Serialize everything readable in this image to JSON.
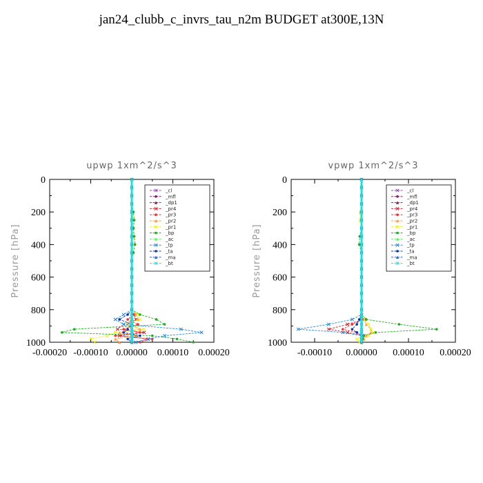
{
  "page": {
    "title": "jan24_clubb_c_invrs_tau_n2m  BUDGET at300E,13N"
  },
  "legend_items": [
    {
      "label": "_cl",
      "color": "#8e44ad"
    },
    {
      "label": "_mfl",
      "color": "#7b1f6e"
    },
    {
      "label": "_dp1",
      "color": "#8b1a4a"
    },
    {
      "label": "_pr4",
      "color": "#cc2233"
    },
    {
      "label": "_pr3",
      "color": "#ee3333"
    },
    {
      "label": "_pr2",
      "color": "#ff9933"
    },
    {
      "label": "_pr1",
      "color": "#eeee22"
    },
    {
      "label": "_bp",
      "color": "#22aa22"
    },
    {
      "label": "_ac",
      "color": "#66ee66"
    },
    {
      "label": "_tp",
      "color": "#2288dd"
    },
    {
      "label": "_ta",
      "color": "#1133aa"
    },
    {
      "label": "_ma",
      "color": "#3366cc"
    },
    {
      "label": "_bt",
      "color": "#22dddd"
    }
  ],
  "chart_data": [
    {
      "type": "line",
      "title": "upwp   1xm^2/s^3",
      "xlabel": "",
      "ylabel": "Pressure [hPa]",
      "xlim": [
        -0.0002,
        0.0002
      ],
      "ylim": [
        1000,
        0
      ],
      "xticks": [
        -0.0002,
        -0.0001,
        0.0,
        0.0001,
        0.0002
      ],
      "xtick_labels": [
        "-0.00020",
        "-0.00010",
        "0.00000",
        "0.00010",
        "0.00020"
      ],
      "yticks": [
        0,
        200,
        400,
        600,
        800,
        1000
      ],
      "ytick_labels": [
        "0",
        "200",
        "400",
        "600",
        "800",
        "1000"
      ],
      "legend_position": "top-right",
      "pressure": [
        0,
        50,
        100,
        150,
        200,
        250,
        300,
        350,
        400,
        450,
        500,
        550,
        600,
        650,
        700,
        750,
        800,
        830,
        860,
        890,
        920,
        940,
        960,
        980,
        1000
      ],
      "series": [
        {
          "name": "_cl",
          "color": "#8e44ad",
          "values": [
            0,
            0,
            0,
            0,
            0,
            0,
            0,
            0,
            0,
            0,
            0,
            0,
            0,
            0,
            0,
            0,
            0,
            0,
            0,
            0,
            0,
            0,
            0,
            0,
            0
          ]
        },
        {
          "name": "_mfl",
          "color": "#7b1f6e",
          "values": [
            0,
            0,
            0,
            0,
            0,
            0,
            0,
            0,
            0,
            0,
            0,
            0,
            0,
            0,
            0,
            0,
            0,
            0,
            0,
            0,
            0,
            0,
            0,
            0,
            0
          ]
        },
        {
          "name": "_dp1",
          "color": "#8b1a4a",
          "values": [
            0,
            0,
            0,
            0,
            0,
            0,
            0,
            0,
            0,
            0,
            0,
            0,
            0,
            0,
            0,
            0,
            0,
            0,
            0,
            0,
            0,
            0,
            0,
            0,
            0
          ]
        },
        {
          "name": "_pr4",
          "color": "#cc2233",
          "values": [
            0,
            0,
            0,
            0,
            0,
            0,
            0,
            0,
            0,
            0,
            0,
            0,
            0,
            0,
            0,
            0,
            0,
            5e-06,
            1e-05,
            -2e-05,
            -3.5e-05,
            3e-05,
            -3e-05,
            4e-05,
            1e-05
          ]
        },
        {
          "name": "_pr3",
          "color": "#ee3333",
          "values": [
            0,
            0,
            0,
            0,
            0,
            0,
            0,
            0,
            0,
            0,
            0,
            0,
            0,
            0,
            0,
            0,
            0,
            5e-06,
            -1e-05,
            1.5e-05,
            -2e-05,
            2e-05,
            -4e-05,
            5e-05,
            2e-05
          ]
        },
        {
          "name": "_pr2",
          "color": "#ff9933",
          "values": [
            0,
            0,
            0,
            0,
            0,
            0,
            0,
            0,
            0,
            0,
            0,
            0,
            0,
            0,
            0,
            0,
            0,
            1e-05,
            1.5e-05,
            -1e-05,
            2e-05,
            -3e-05,
            1e-05,
            -4e-05,
            -3e-05
          ]
        },
        {
          "name": "_pr1",
          "color": "#eeee22",
          "values": [
            0,
            0,
            0,
            0,
            2e-06,
            3e-06,
            5e-06,
            3e-06,
            4e-06,
            2e-06,
            0,
            0,
            0,
            0,
            0,
            0,
            0,
            1.5e-05,
            2e-05,
            -2e-05,
            3e-05,
            -4e-05,
            -6e-05,
            -0.0001,
            -9e-05
          ]
        },
        {
          "name": "_bp",
          "color": "#22aa22",
          "values": [
            0,
            0,
            0,
            0,
            4e-06,
            6e-06,
            4e-06,
            6e-06,
            8e-06,
            4e-06,
            0,
            0,
            0,
            0,
            0,
            0,
            0,
            2e-05,
            6e-05,
            8e-05,
            -0.00014,
            -0.00017,
            5e-05,
            0.00011,
            0.00015
          ]
        },
        {
          "name": "_ac",
          "color": "#66ee66",
          "values": [
            0,
            0,
            0,
            0,
            0,
            0,
            0,
            0,
            0,
            0,
            0,
            0,
            0,
            0,
            0,
            0,
            0,
            0,
            0,
            0,
            0,
            0,
            0,
            0,
            0
          ]
        },
        {
          "name": "_tp",
          "color": "#2288dd",
          "values": [
            0,
            0,
            0,
            0,
            0,
            0,
            0,
            0,
            0,
            0,
            0,
            0,
            0,
            0,
            0,
            0,
            0,
            -2e-05,
            -4e-05,
            -2e-05,
            0.00012,
            0.00017,
            8e-05,
            4e-05,
            1e-05
          ]
        },
        {
          "name": "_ta",
          "color": "#1133aa",
          "values": [
            0,
            0,
            0,
            0,
            0,
            0,
            0,
            0,
            0,
            0,
            0,
            0,
            0,
            0,
            0,
            0,
            0,
            -1e-05,
            -3e-05,
            0,
            -1e-05,
            -2e-05,
            2e-05,
            -1e-05,
            0
          ]
        },
        {
          "name": "_ma",
          "color": "#3366cc",
          "values": [
            0,
            0,
            0,
            0,
            0,
            0,
            0,
            0,
            0,
            0,
            0,
            0,
            0,
            0,
            0,
            0,
            0,
            0,
            0,
            0,
            0,
            0,
            0,
            0,
            0
          ]
        },
        {
          "name": "_bt",
          "color": "#22dddd",
          "values": [
            0,
            0,
            0,
            0,
            0,
            0,
            0,
            0,
            0,
            0,
            0,
            0,
            0,
            0,
            0,
            0,
            0,
            0,
            0,
            0,
            0,
            0,
            0,
            0,
            0
          ]
        }
      ]
    },
    {
      "type": "line",
      "title": "vpwp   1xm^2/s^3",
      "xlabel": "",
      "ylabel": "Pressure [hPa]",
      "xlim": [
        -0.00015,
        0.0002
      ],
      "ylim": [
        1000,
        0
      ],
      "xticks": [
        -0.0001,
        0.0,
        0.0001,
        0.0002
      ],
      "xtick_labels": [
        "-0.00010",
        "0.00000",
        "0.00010",
        "0.00020"
      ],
      "yticks": [
        0,
        200,
        400,
        600,
        800,
        1000
      ],
      "ytick_labels": [
        "0",
        "200",
        "400",
        "600",
        "800",
        "1000"
      ],
      "legend_position": "top-right",
      "pressure": [
        0,
        50,
        100,
        150,
        200,
        250,
        300,
        350,
        400,
        450,
        500,
        550,
        600,
        650,
        700,
        750,
        800,
        830,
        860,
        890,
        920,
        940,
        960,
        980,
        1000
      ],
      "series": [
        {
          "name": "_cl",
          "color": "#8e44ad",
          "values": [
            0,
            0,
            0,
            0,
            0,
            0,
            0,
            0,
            0,
            0,
            0,
            0,
            0,
            0,
            0,
            0,
            0,
            0,
            0,
            0,
            0,
            0,
            0,
            0,
            0
          ]
        },
        {
          "name": "_mfl",
          "color": "#7b1f6e",
          "values": [
            0,
            0,
            0,
            0,
            0,
            0,
            0,
            0,
            0,
            0,
            0,
            0,
            0,
            0,
            0,
            0,
            0,
            0,
            0,
            0,
            0,
            0,
            0,
            0,
            0
          ]
        },
        {
          "name": "_dp1",
          "color": "#8b1a4a",
          "values": [
            0,
            0,
            0,
            0,
            0,
            0,
            0,
            0,
            0,
            0,
            0,
            0,
            0,
            0,
            0,
            0,
            0,
            0,
            0,
            0,
            0,
            0,
            0,
            0,
            0
          ]
        },
        {
          "name": "_pr4",
          "color": "#cc2233",
          "values": [
            0,
            0,
            0,
            0,
            0,
            0,
            0,
            0,
            0,
            0,
            0,
            0,
            0,
            0,
            0,
            0,
            0,
            0,
            5e-06,
            -3e-05,
            -7e-05,
            -3e-05,
            5e-06,
            2e-06,
            0
          ]
        },
        {
          "name": "_pr3",
          "color": "#ee3333",
          "values": [
            0,
            0,
            0,
            0,
            0,
            0,
            0,
            0,
            0,
            0,
            0,
            0,
            0,
            0,
            0,
            0,
            0,
            0,
            3e-06,
            -2e-05,
            -4e-05,
            -1e-05,
            3e-06,
            0,
            0
          ]
        },
        {
          "name": "_pr2",
          "color": "#ff9933",
          "values": [
            0,
            0,
            0,
            0,
            -3e-06,
            -2e-06,
            0,
            0,
            0,
            0,
            0,
            0,
            0,
            0,
            0,
            0,
            0,
            0,
            5e-06,
            1e-05,
            2e-05,
            2e-05,
            1e-05,
            5e-06,
            0
          ]
        },
        {
          "name": "_pr1",
          "color": "#eeee22",
          "values": [
            0,
            0,
            0,
            0,
            -2e-06,
            -3e-06,
            0,
            0,
            0,
            0,
            0,
            0,
            0,
            0,
            0,
            0,
            0,
            0,
            8e-06,
            1.5e-05,
            2e-05,
            2.5e-05,
            1.5e-05,
            -1e-05,
            -5e-06
          ]
        },
        {
          "name": "_bp",
          "color": "#22aa22",
          "values": [
            0,
            0,
            0,
            0,
            0,
            0,
            0,
            -4e-06,
            -5e-06,
            0,
            0,
            0,
            0,
            0,
            0,
            0,
            0,
            0,
            1e-05,
            8e-05,
            0.00016,
            3e-05,
            5e-06,
            2e-06,
            0
          ]
        },
        {
          "name": "_ac",
          "color": "#66ee66",
          "values": [
            0,
            0,
            0,
            0,
            0,
            0,
            0,
            0,
            0,
            0,
            0,
            0,
            0,
            0,
            0,
            0,
            0,
            0,
            0,
            0,
            0,
            0,
            0,
            0,
            0
          ]
        },
        {
          "name": "_tp",
          "color": "#2288dd",
          "values": [
            0,
            0,
            0,
            0,
            0,
            0,
            0,
            0,
            0,
            0,
            0,
            0,
            0,
            0,
            0,
            0,
            0,
            0,
            -2e-05,
            -7e-05,
            -0.000135,
            -4e-05,
            2e-06,
            0,
            0
          ]
        },
        {
          "name": "_ta",
          "color": "#1133aa",
          "values": [
            0,
            0,
            0,
            0,
            0,
            0,
            0,
            0,
            0,
            0,
            0,
            0,
            0,
            0,
            0,
            0,
            0,
            0,
            -5e-06,
            -1e-05,
            -2e-05,
            -1e-05,
            0,
            0,
            0
          ]
        },
        {
          "name": "_ma",
          "color": "#3366cc",
          "values": [
            0,
            0,
            0,
            0,
            0,
            0,
            0,
            0,
            0,
            0,
            0,
            0,
            0,
            0,
            0,
            0,
            0,
            0,
            0,
            0,
            0,
            0,
            0,
            0,
            0
          ]
        },
        {
          "name": "_bt",
          "color": "#22dddd",
          "values": [
            0,
            0,
            0,
            0,
            0,
            0,
            0,
            0,
            0,
            0,
            0,
            0,
            0,
            0,
            0,
            0,
            0,
            0,
            0,
            0,
            0,
            0,
            0,
            0,
            0
          ]
        }
      ]
    }
  ]
}
